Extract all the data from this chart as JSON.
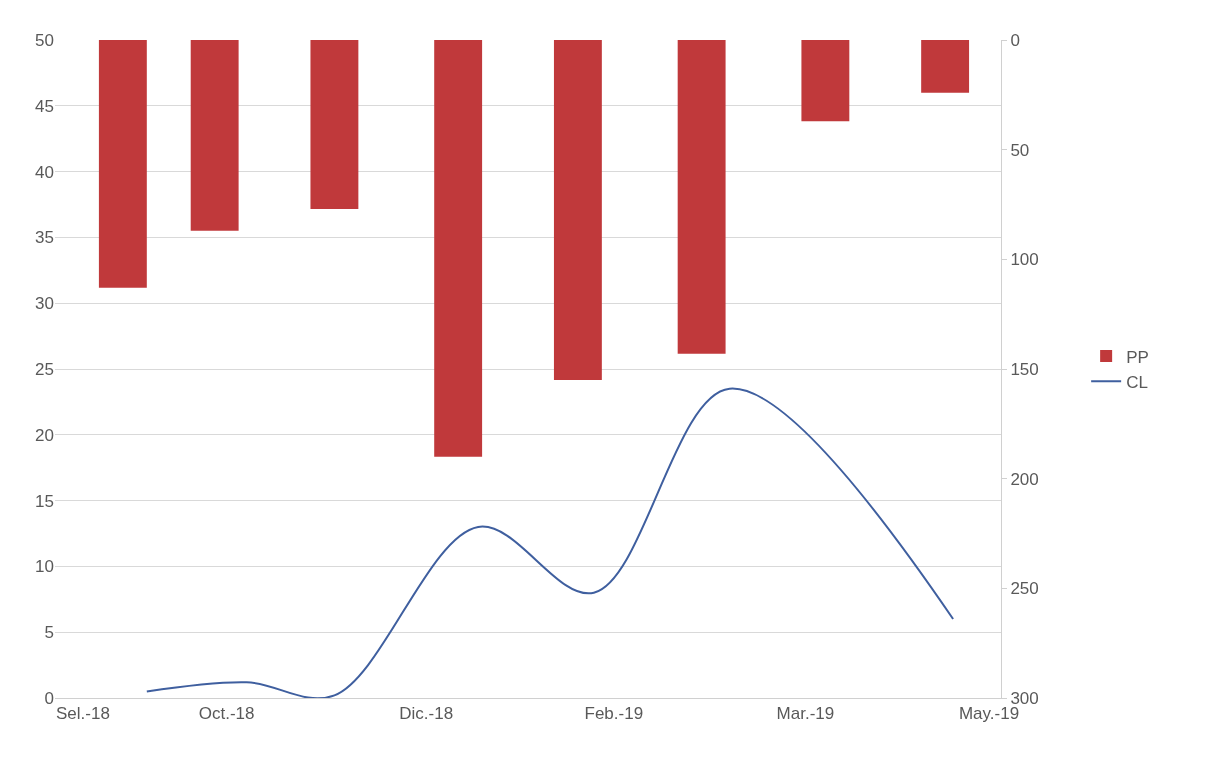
{
  "chart_data": {
    "type": "bar",
    "x": [
      "2018-10-05",
      "2018-10-28",
      "2018-11-27",
      "2018-12-28",
      "2019-01-27",
      "2019-02-27",
      "2019-03-30",
      "2019-04-29"
    ],
    "series": [
      {
        "name": "PP",
        "axis": "y2",
        "color": "#c0393b",
        "values": [
          113,
          87,
          77,
          190,
          155,
          143,
          37,
          24
        ]
      },
      {
        "name": "CL",
        "type": "line",
        "color": "#3f5f9f",
        "x": [
          "2018-10-11",
          "2018-11-05",
          "2018-11-27",
          "2019-01-02",
          "2019-01-31",
          "2019-03-06",
          "2019-05-01"
        ],
        "values": [
          0.5,
          1.2,
          0.2,
          13,
          8,
          23.5,
          6
        ]
      }
    ],
    "xlim": [
      "2018-09-18",
      "2019-05-13"
    ],
    "xticks": [
      {
        "value": "2018-09-25",
        "label": "Sel.-18"
      },
      {
        "value": "2018-10-31",
        "label": "Oct.-18"
      },
      {
        "value": "2018-12-20",
        "label": "Dic.-18"
      },
      {
        "value": "2019-02-05",
        "label": "Feb.-19"
      },
      {
        "value": "2019-03-25",
        "label": "Mar.-19"
      },
      {
        "value": "2019-05-10",
        "label": "May.-19"
      }
    ],
    "ylim": [
      0,
      50
    ],
    "yticks": [
      0,
      5,
      10,
      15,
      20,
      25,
      30,
      35,
      40,
      45,
      50
    ],
    "y2lim": [
      300,
      0
    ],
    "y2ticks": [
      0,
      50,
      100,
      150,
      200,
      250,
      300
    ],
    "grid": "y",
    "legend": "right",
    "marker": "none",
    "line_style": "solid"
  }
}
